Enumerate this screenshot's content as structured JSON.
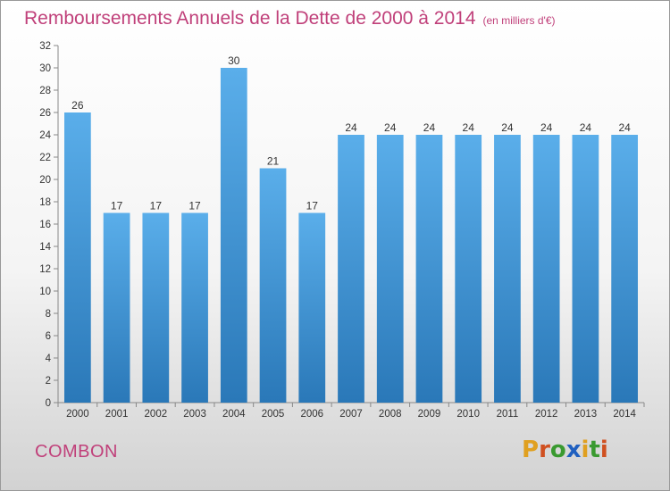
{
  "header": {
    "title": "Remboursements Annuels de la Dette de 2000 à 2014",
    "unit": "(en milliers d'€)"
  },
  "footer": {
    "town": "COMBON",
    "logo_letters": [
      "P",
      "r",
      "o",
      "x",
      "i",
      "t",
      "i"
    ]
  },
  "colors": {
    "accent": "#c0407a",
    "bar_top": "#5aaeea",
    "bar_bottom": "#2a78b8",
    "logo": [
      "#e0a020",
      "#d05020",
      "#3a9a30",
      "#2060c0",
      "#e0a020",
      "#3a9a30",
      "#d05020"
    ]
  },
  "chart_data": {
    "type": "bar",
    "title": "Remboursements Annuels de la Dette de 2000 à 2014",
    "xlabel": "",
    "ylabel": "",
    "categories": [
      "2000",
      "2001",
      "2002",
      "2003",
      "2004",
      "2005",
      "2006",
      "2007",
      "2008",
      "2009",
      "2010",
      "2011",
      "2012",
      "2013",
      "2014"
    ],
    "values": [
      26,
      17,
      17,
      17,
      30,
      21,
      17,
      24,
      24,
      24,
      24,
      24,
      24,
      24,
      24
    ],
    "ylim": [
      0,
      32
    ],
    "ytick_step": 2,
    "grid": false,
    "legend": "none"
  }
}
